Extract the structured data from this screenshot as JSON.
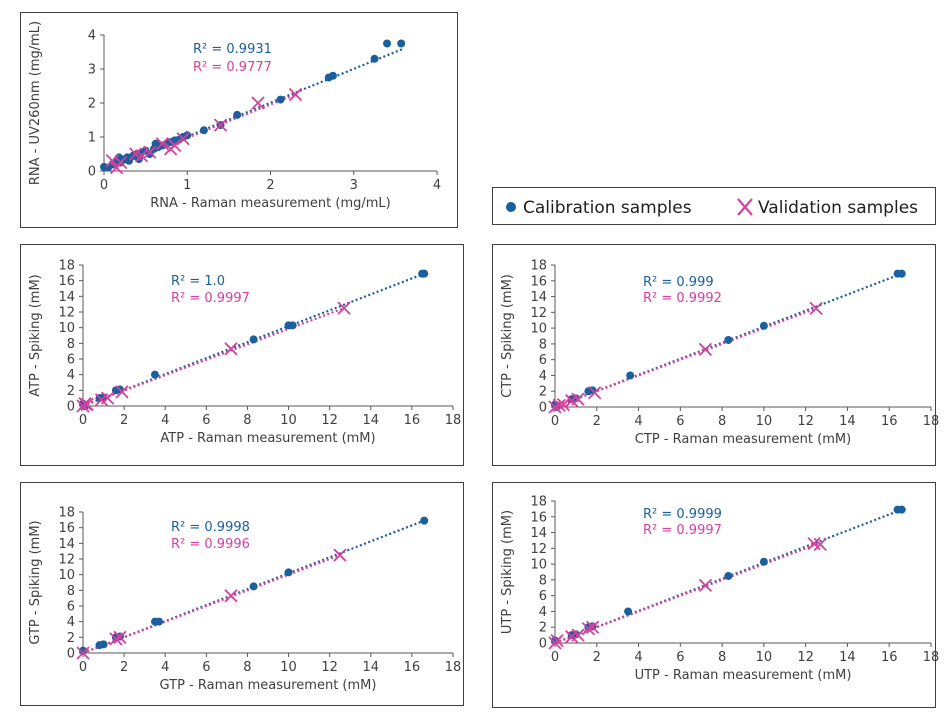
{
  "colors": {
    "calibration": "#1a5f9e",
    "validation": "#d6409f",
    "axis": "#595959",
    "text": "#404040"
  },
  "legend": {
    "calibration_label": "Calibration samples",
    "validation_label": "Validation samples"
  },
  "chart_data": [
    {
      "id": "rna",
      "type": "scatter",
      "xlabel": "RNA - Raman measurement (mg/mL)",
      "ylabel": "RNA - UV260nm (mg/mL)",
      "xlim": [
        0,
        4
      ],
      "ylim": [
        0,
        4
      ],
      "xticks": [
        0,
        1,
        2,
        3,
        4
      ],
      "yticks": [
        0,
        1,
        2,
        3,
        4
      ],
      "r2_calibration": "R² = 0.9931",
      "r2_validation": "R² = 0.9777",
      "series": [
        {
          "name": "Calibration samples",
          "marker": "circle",
          "trendline": {
            "x0": 0,
            "y0": 0.02,
            "x1": 3.6,
            "y1": 3.6
          },
          "points": [
            [
              0.0,
              0.12
            ],
            [
              0.05,
              0.1
            ],
            [
              0.1,
              0.2
            ],
            [
              0.15,
              0.3
            ],
            [
              0.18,
              0.4
            ],
            [
              0.2,
              0.25
            ],
            [
              0.25,
              0.35
            ],
            [
              0.28,
              0.4
            ],
            [
              0.3,
              0.3
            ],
            [
              0.35,
              0.45
            ],
            [
              0.4,
              0.5
            ],
            [
              0.42,
              0.35
            ],
            [
              0.45,
              0.55
            ],
            [
              0.5,
              0.6
            ],
            [
              0.55,
              0.5
            ],
            [
              0.6,
              0.65
            ],
            [
              0.62,
              0.8
            ],
            [
              0.65,
              0.7
            ],
            [
              0.7,
              0.75
            ],
            [
              0.75,
              0.8
            ],
            [
              0.8,
              0.85
            ],
            [
              0.85,
              0.9
            ],
            [
              0.9,
              0.92
            ],
            [
              0.95,
              1.0
            ],
            [
              1.0,
              1.05
            ],
            [
              1.2,
              1.2
            ],
            [
              1.4,
              1.35
            ],
            [
              1.6,
              1.65
            ],
            [
              2.12,
              2.1
            ],
            [
              2.7,
              2.75
            ],
            [
              2.75,
              2.8
            ],
            [
              3.25,
              3.3
            ],
            [
              3.4,
              3.75
            ],
            [
              3.57,
              3.75
            ]
          ]
        },
        {
          "name": "Validation samples",
          "marker": "x",
          "trendline": {
            "x0": 0,
            "y0": 0.0,
            "x1": 2.3,
            "y1": 2.25
          },
          "points": [
            [
              0.1,
              0.3
            ],
            [
              0.15,
              0.1
            ],
            [
              0.2,
              0.25
            ],
            [
              0.38,
              0.5
            ],
            [
              0.45,
              0.45
            ],
            [
              0.55,
              0.55
            ],
            [
              0.7,
              0.8
            ],
            [
              0.8,
              0.65
            ],
            [
              0.85,
              0.75
            ],
            [
              0.95,
              0.95
            ],
            [
              1.4,
              1.35
            ],
            [
              1.85,
              2.0
            ],
            [
              2.3,
              2.25
            ]
          ]
        }
      ]
    },
    {
      "id": "atp",
      "type": "scatter",
      "xlabel": "ATP - Raman measurement (mM)",
      "ylabel": "ATP - Spiking (mM)",
      "xlim": [
        0,
        18
      ],
      "ylim": [
        0,
        18
      ],
      "xticks": [
        0,
        2,
        4,
        6,
        8,
        10,
        12,
        14,
        16,
        18
      ],
      "yticks": [
        0,
        2,
        4,
        6,
        8,
        10,
        12,
        14,
        16,
        18
      ],
      "r2_calibration": "R² = 1.0",
      "r2_validation": "R² = 0.9997",
      "series": [
        {
          "name": "Calibration samples",
          "marker": "circle",
          "trendline": {
            "x0": 0,
            "y0": 0,
            "x1": 16.6,
            "y1": 16.9
          },
          "points": [
            [
              0,
              0.3
            ],
            [
              0.1,
              0
            ],
            [
              0.8,
              1.0
            ],
            [
              1.0,
              1.1
            ],
            [
              1.6,
              2.0
            ],
            [
              1.8,
              2.1
            ],
            [
              3.5,
              4.0
            ],
            [
              8.3,
              8.5
            ],
            [
              10.0,
              10.3
            ],
            [
              10.2,
              10.3
            ],
            [
              16.5,
              16.9
            ],
            [
              16.6,
              16.9
            ]
          ]
        },
        {
          "name": "Validation samples",
          "marker": "x",
          "trendline": {
            "x0": 0,
            "y0": 0,
            "x1": 12.7,
            "y1": 12.5
          },
          "points": [
            [
              0,
              0
            ],
            [
              0.2,
              0.2
            ],
            [
              0.1,
              0.3
            ],
            [
              0.9,
              0.8
            ],
            [
              1.2,
              1.0
            ],
            [
              1.9,
              1.8
            ],
            [
              7.2,
              7.3
            ],
            [
              12.7,
              12.5
            ]
          ]
        }
      ]
    },
    {
      "id": "ctp",
      "type": "scatter",
      "xlabel": "CTP - Raman measurement (mM)",
      "ylabel": "CTP - Spiking (mM)",
      "xlim": [
        0,
        18
      ],
      "ylim": [
        0,
        18
      ],
      "xticks": [
        0,
        2,
        4,
        6,
        8,
        10,
        12,
        14,
        16,
        18
      ],
      "yticks": [
        0,
        2,
        4,
        6,
        8,
        10,
        12,
        14,
        16,
        18
      ],
      "r2_calibration": "R² = 0.999",
      "r2_validation": "R² = 0.9992",
      "series": [
        {
          "name": "Calibration samples",
          "marker": "circle",
          "trendline": {
            "x0": 0,
            "y0": 0,
            "x1": 16.6,
            "y1": 16.9
          },
          "points": [
            [
              0,
              0.3
            ],
            [
              0.1,
              0
            ],
            [
              0.8,
              1.0
            ],
            [
              1.0,
              1.1
            ],
            [
              1.6,
              2.0
            ],
            [
              1.8,
              2.1
            ],
            [
              3.6,
              4.0
            ],
            [
              8.3,
              8.5
            ],
            [
              10.0,
              10.3
            ],
            [
              16.4,
              16.9
            ],
            [
              16.6,
              16.9
            ]
          ]
        },
        {
          "name": "Validation samples",
          "marker": "x",
          "trendline": {
            "x0": 0,
            "y0": 0,
            "x1": 12.5,
            "y1": 12.5
          },
          "points": [
            [
              0,
              0
            ],
            [
              0.2,
              0.2
            ],
            [
              0.4,
              0.3
            ],
            [
              0.8,
              0.8
            ],
            [
              1.1,
              1.0
            ],
            [
              1.9,
              1.8
            ],
            [
              7.2,
              7.3
            ],
            [
              12.5,
              12.5
            ]
          ]
        }
      ]
    },
    {
      "id": "gtp",
      "type": "scatter",
      "xlabel": "GTP - Raman measurement (mM)",
      "ylabel": "GTP - Spiking (mM)",
      "xlim": [
        0,
        18
      ],
      "ylim": [
        0,
        18
      ],
      "xticks": [
        0,
        2,
        4,
        6,
        8,
        10,
        12,
        14,
        16,
        18
      ],
      "yticks": [
        0,
        2,
        4,
        6,
        8,
        10,
        12,
        14,
        16,
        18
      ],
      "r2_calibration": "R² = 0.9998",
      "r2_validation": "R² = 0.9996",
      "series": [
        {
          "name": "Calibration samples",
          "marker": "circle",
          "trendline": {
            "x0": 0,
            "y0": 0,
            "x1": 16.6,
            "y1": 16.9
          },
          "points": [
            [
              0,
              0.3
            ],
            [
              0.8,
              1.0
            ],
            [
              1.0,
              1.1
            ],
            [
              1.6,
              2.0
            ],
            [
              1.8,
              2.1
            ],
            [
              3.5,
              4.0
            ],
            [
              3.7,
              4.0
            ],
            [
              8.3,
              8.5
            ],
            [
              10.0,
              10.3
            ],
            [
              16.6,
              16.9
            ]
          ]
        },
        {
          "name": "Validation samples",
          "marker": "x",
          "trendline": {
            "x0": 0,
            "y0": 0,
            "x1": 12.5,
            "y1": 12.5
          },
          "points": [
            [
              0,
              0
            ],
            [
              1.6,
              1.8
            ],
            [
              1.8,
              2.0
            ],
            [
              7.2,
              7.3
            ],
            [
              12.5,
              12.5
            ]
          ]
        }
      ]
    },
    {
      "id": "utp",
      "type": "scatter",
      "xlabel": "UTP - Raman measurement (mM)",
      "ylabel": "UTP - Spiking (mM)",
      "xlim": [
        0,
        18
      ],
      "ylim": [
        0,
        18
      ],
      "xticks": [
        0,
        2,
        4,
        6,
        8,
        10,
        12,
        14,
        16,
        18
      ],
      "yticks": [
        0,
        2,
        4,
        6,
        8,
        10,
        12,
        14,
        16,
        18
      ],
      "r2_calibration": "R² = 0.9999",
      "r2_validation": "R² = 0.9997",
      "series": [
        {
          "name": "Calibration samples",
          "marker": "circle",
          "trendline": {
            "x0": 0,
            "y0": 0,
            "x1": 16.6,
            "y1": 16.9
          },
          "points": [
            [
              0,
              0.3
            ],
            [
              0.8,
              1.0
            ],
            [
              1.0,
              1.1
            ],
            [
              1.6,
              2.0
            ],
            [
              1.8,
              2.1
            ],
            [
              3.5,
              4.0
            ],
            [
              8.3,
              8.5
            ],
            [
              10.0,
              10.3
            ],
            [
              16.4,
              16.9
            ],
            [
              16.6,
              16.9
            ]
          ]
        },
        {
          "name": "Validation samples",
          "marker": "x",
          "trendline": {
            "x0": 0,
            "y0": 0,
            "x1": 12.6,
            "y1": 12.6
          },
          "points": [
            [
              0,
              0
            ],
            [
              0.1,
              0.3
            ],
            [
              0.8,
              0.8
            ],
            [
              1.1,
              1.0
            ],
            [
              1.6,
              1.8
            ],
            [
              1.8,
              2.0
            ],
            [
              7.2,
              7.3
            ],
            [
              12.4,
              12.6
            ],
            [
              12.7,
              12.5
            ]
          ]
        }
      ]
    }
  ]
}
